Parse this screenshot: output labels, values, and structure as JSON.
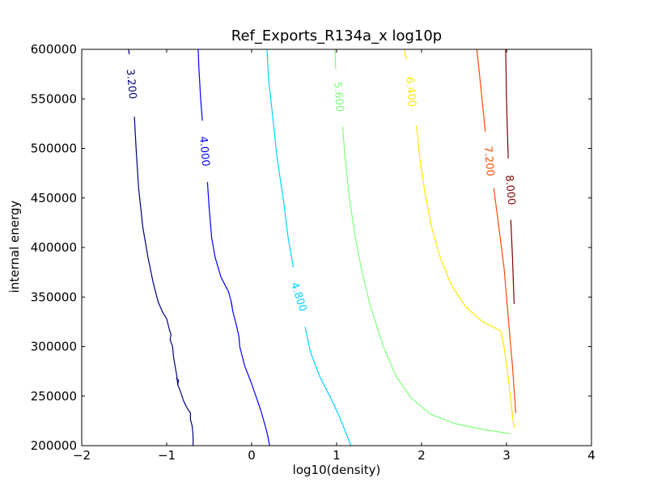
{
  "chart_data": {
    "type": "contour",
    "title": "Ref_Exports_R134a_x log10p",
    "xlabel": "log10(density)",
    "ylabel": "internal energy",
    "xlim": [
      -2,
      4
    ],
    "ylim": [
      200000,
      600000
    ],
    "xticks": [
      -2,
      -1,
      0,
      1,
      2,
      3,
      4
    ],
    "xtick_labels": [
      "−2",
      "−1",
      "0",
      "1",
      "2",
      "3",
      "4"
    ],
    "yticks": [
      200000,
      250000,
      300000,
      350000,
      400000,
      450000,
      500000,
      550000,
      600000
    ],
    "ytick_labels": [
      "200000",
      "250000",
      "300000",
      "350000",
      "400000",
      "450000",
      "500000",
      "550000",
      "600000"
    ],
    "grid": false,
    "contours": [
      {
        "level": "3.200",
        "color": "#000080",
        "segments": [
          [
            [
              -1.45,
              600000
            ],
            [
              -1.44,
              595000
            ]
          ],
          [
            [
              -1.38,
              532000
            ],
            [
              -1.36,
              500000
            ],
            [
              -1.33,
              460000
            ],
            [
              -1.28,
              420000
            ],
            [
              -1.22,
              390000
            ],
            [
              -1.16,
              365000
            ],
            [
              -1.1,
              345000
            ],
            [
              -1.05,
              335000
            ],
            [
              -1.0,
              328000
            ],
            [
              -0.97,
              318000
            ],
            [
              -0.95,
              312000
            ],
            [
              -0.96,
              307000
            ],
            [
              -0.93,
              300000
            ],
            [
              -0.92,
              290000
            ],
            [
              -0.9,
              280000
            ],
            [
              -0.88,
              270000
            ],
            [
              -0.87,
              262000
            ],
            [
              -0.84,
              255000
            ],
            [
              -0.8,
              245000
            ],
            [
              -0.76,
              238000
            ],
            [
              -0.72,
              233000
            ],
            [
              -0.72,
              226000
            ],
            [
              -0.7,
              220000
            ],
            [
              -0.69,
              210000
            ],
            [
              -0.69,
              200000
            ]
          ],
          [
            [
              -0.89,
              268000
            ],
            [
              -0.86,
              266000
            ],
            [
              -0.87,
              262000
            ]
          ]
        ],
        "label_pos": [
          -1.42,
          565000
        ]
      },
      {
        "level": "4.000",
        "color": "#0000ff",
        "segments": [
          [
            [
              -0.63,
              600000
            ],
            [
              -0.62,
              580000
            ],
            [
              -0.6,
              550000
            ],
            [
              -0.58,
              528000
            ]
          ],
          [
            [
              -0.52,
              466000
            ],
            [
              -0.5,
              440000
            ],
            [
              -0.47,
              410000
            ],
            [
              -0.43,
              390000
            ],
            [
              -0.36,
              370000
            ],
            [
              -0.27,
              355000
            ],
            [
              -0.24,
              345000
            ],
            [
              -0.22,
              335000
            ],
            [
              -0.18,
              322000
            ],
            [
              -0.15,
              310000
            ],
            [
              -0.14,
              300000
            ],
            [
              -0.08,
              280000
            ],
            [
              -0.01,
              265000
            ],
            [
              0.05,
              250000
            ],
            [
              0.11,
              235000
            ],
            [
              0.16,
              220000
            ],
            [
              0.19,
              210000
            ],
            [
              0.21,
              200000
            ]
          ],
          [
            [
              -0.24,
              345000
            ],
            [
              -0.23,
              340000
            ]
          ]
        ],
        "label_pos": [
          -0.56,
          497000
        ]
      },
      {
        "level": "4.800",
        "color": "#00d4ff",
        "segments": [
          [
            [
              0.18,
              600000
            ],
            [
              0.2,
              570000
            ],
            [
              0.25,
              530000
            ],
            [
              0.3,
              490000
            ],
            [
              0.37,
              450000
            ],
            [
              0.43,
              410000
            ],
            [
              0.49,
              380000
            ]
          ],
          [
            [
              0.63,
              320000
            ],
            [
              0.69,
              295000
            ],
            [
              0.8,
              270000
            ],
            [
              0.92,
              250000
            ],
            [
              1.03,
              230000
            ],
            [
              1.1,
              215000
            ],
            [
              1.17,
              200000
            ]
          ]
        ],
        "label_pos": [
          0.55,
          350000
        ]
      },
      {
        "level": "5.600",
        "color": "#7dff7a",
        "segments": [
          [
            [
              0.98,
              600000
            ],
            [
              0.99,
              580000
            ]
          ],
          [
            [
              1.07,
              522000
            ],
            [
              1.1,
              490000
            ],
            [
              1.15,
              450000
            ],
            [
              1.22,
              410000
            ],
            [
              1.3,
              375000
            ],
            [
              1.4,
              340000
            ],
            [
              1.55,
              300000
            ],
            [
              1.7,
              270000
            ],
            [
              1.88,
              248000
            ],
            [
              2.1,
              232000
            ],
            [
              2.4,
              222000
            ],
            [
              2.75,
              216000
            ],
            [
              3.05,
              212000
            ]
          ]
        ],
        "label_pos": [
          1.02,
          552000
        ]
      },
      {
        "level": "6.400",
        "color": "#ffe600",
        "segments": [
          [
            [
              1.8,
              600000
            ],
            [
              1.82,
              590000
            ]
          ],
          [
            [
              1.94,
              523000
            ],
            [
              1.98,
              490000
            ],
            [
              2.04,
              455000
            ],
            [
              2.12,
              420000
            ],
            [
              2.22,
              390000
            ],
            [
              2.35,
              362000
            ],
            [
              2.52,
              340000
            ],
            [
              2.72,
              325000
            ],
            [
              2.93,
              316000
            ],
            [
              2.97,
              300000
            ],
            [
              3.02,
              270000
            ],
            [
              3.07,
              230000
            ],
            [
              3.09,
              218000
            ]
          ]
        ],
        "label_pos": [
          1.87,
          557000
        ]
      },
      {
        "level": "7.200",
        "color": "#ff4a00",
        "segments": [
          [
            [
              2.65,
              600000
            ],
            [
              2.7,
              560000
            ],
            [
              2.75,
              517000
            ]
          ],
          [
            [
              2.85,
              460000
            ],
            [
              2.91,
              420000
            ],
            [
              2.97,
              380000
            ],
            [
              3.02,
              330000
            ],
            [
              3.07,
              280000
            ],
            [
              3.11,
              233000
            ]
          ]
        ],
        "label_pos": [
          2.79,
          487000
        ]
      },
      {
        "level": "8.000",
        "color": "#800000",
        "segments": [
          [
            [
              2.99,
              600000
            ],
            [
              3.0,
              550000
            ],
            [
              3.02,
              490000
            ]
          ],
          [
            [
              3.05,
              428000
            ],
            [
              3.07,
              390000
            ],
            [
              3.09,
              343000
            ]
          ]
        ],
        "label_pos": [
          3.04,
          458000
        ]
      }
    ]
  }
}
